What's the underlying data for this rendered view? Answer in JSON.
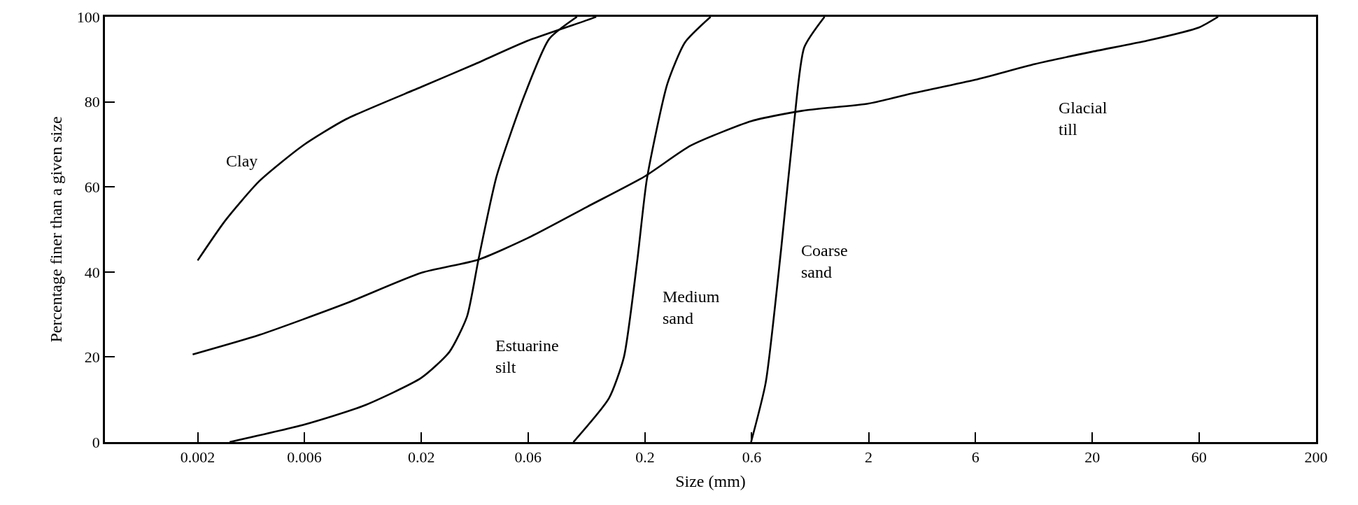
{
  "chart_data": {
    "type": "line",
    "xlabel": "Size (mm)",
    "ylabel": "Percentage finer than a given size",
    "log": "x",
    "grid": false,
    "legend": false,
    "marker": "none",
    "line_style": "solid",
    "xlim": [
      0.00077,
      200
    ],
    "xticks": [
      0.002,
      0.006,
      0.02,
      0.06,
      0.2,
      0.6,
      2,
      6,
      20,
      60,
      200
    ],
    "ylim": [
      0,
      100
    ],
    "yticks": [
      0,
      20,
      40,
      60,
      80,
      100
    ],
    "series": [
      {
        "name": "Clay",
        "color": "#000000",
        "x": [
          0.002,
          0.00265,
          0.00378,
          0.0059,
          0.0092,
          0.02,
          0.0348,
          0.06,
          0.11,
          0.121
        ],
        "values": [
          42.7,
          52,
          61.4,
          69.7,
          75.9,
          83.5,
          88.9,
          94.4,
          99.2,
          100
        ]
      },
      {
        "name": "Glacial\ntill",
        "color": "#000000",
        "x": [
          0.0019,
          0.00378,
          0.0092,
          0.02,
          0.036,
          0.06,
          0.11,
          0.2,
          0.32,
          0.6,
          1.01,
          2,
          3.2,
          6,
          11.1,
          20,
          35.3,
          60,
          73
        ],
        "values": [
          20.6,
          25.2,
          32.6,
          39.8,
          42.9,
          48,
          55.3,
          62.5,
          69.7,
          75.5,
          77.9,
          79.6,
          82.1,
          85.2,
          88.9,
          91.8,
          94.4,
          97.5,
          100
        ]
      },
      {
        "name": "Estuarine\nsilt",
        "color": "#000000",
        "x": [
          0.00278,
          0.006,
          0.011,
          0.02,
          0.0267,
          0.032,
          0.036,
          0.0434,
          0.0577,
          0.0746,
          0.0993
        ],
        "values": [
          0,
          4.1,
          8.5,
          15.1,
          21.2,
          29.5,
          42.9,
          62.5,
          81.4,
          94.8,
          100
        ]
      },
      {
        "name": "Medium\nsand",
        "color": "#000000",
        "x": [
          0.0957,
          0.138,
          0.161,
          0.185,
          0.204,
          0.252,
          0.302,
          0.393
        ],
        "values": [
          0,
          10.3,
          20,
          43,
          61.9,
          84.3,
          94,
          100
        ]
      },
      {
        "name": "Coarse\nsand",
        "color": "#000000",
        "x": [
          0.596,
          0.693,
          0.813,
          0.929,
          1.03,
          1.27
        ],
        "values": [
          0,
          14,
          45.6,
          75.3,
          92.8,
          100
        ]
      }
    ]
  }
}
